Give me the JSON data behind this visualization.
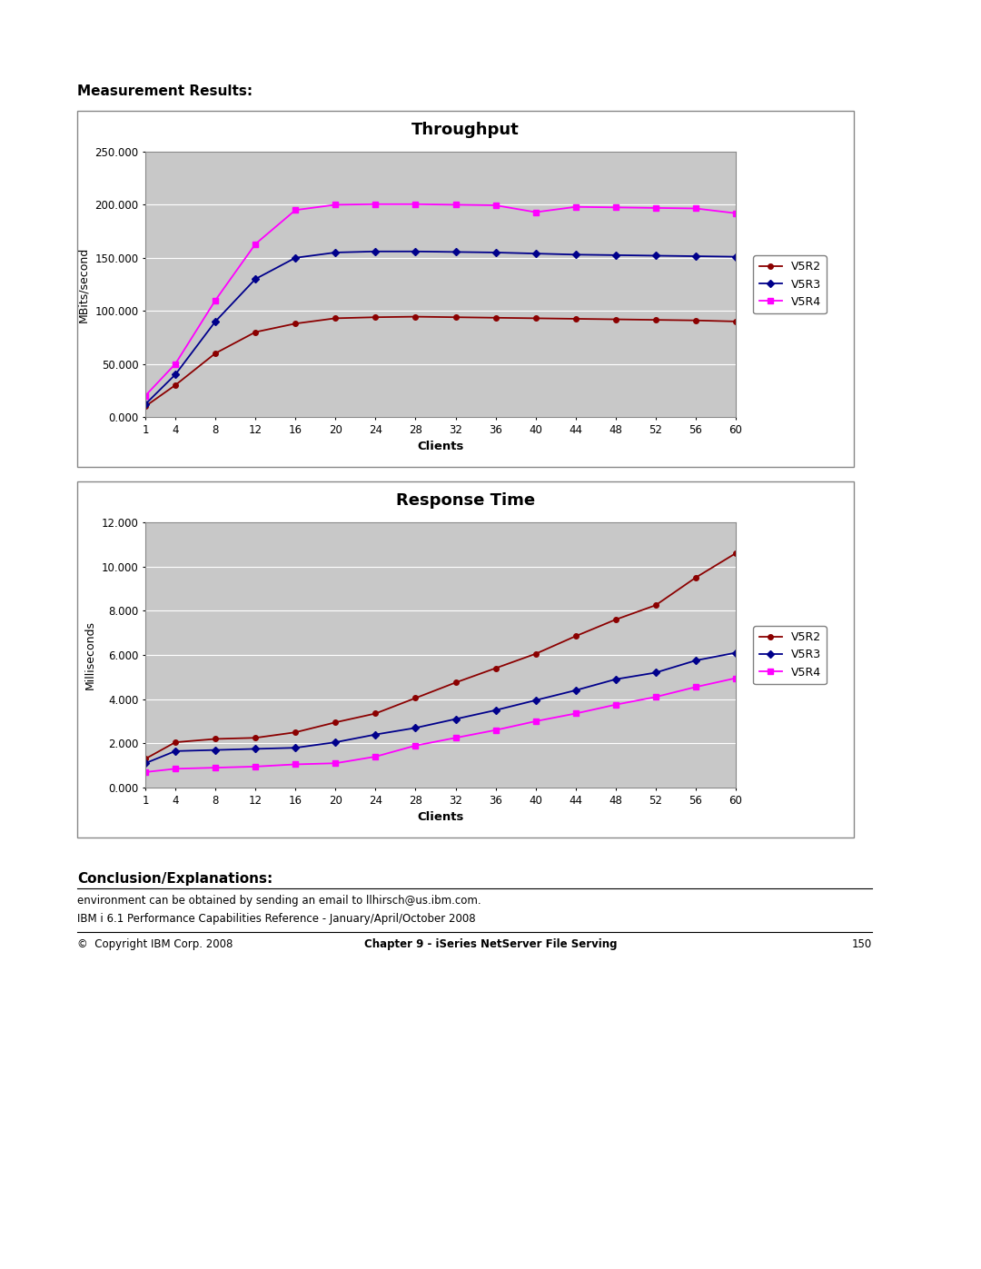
{
  "clients": [
    1,
    4,
    8,
    12,
    16,
    20,
    24,
    28,
    32,
    36,
    40,
    44,
    48,
    52,
    56,
    60
  ],
  "throughput": {
    "V5R2": [
      10.0,
      30.0,
      60.0,
      80.0,
      88.0,
      93.0,
      94.0,
      94.5,
      94.0,
      93.5,
      93.0,
      92.5,
      92.0,
      91.5,
      91.0,
      90.0
    ],
    "V5R3": [
      12.0,
      40.0,
      90.0,
      130.0,
      150.0,
      155.0,
      156.0,
      156.0,
      155.5,
      155.0,
      154.0,
      153.0,
      152.5,
      152.0,
      151.5,
      151.0
    ],
    "V5R4": [
      20.0,
      50.0,
      110.0,
      163.0,
      195.0,
      200.0,
      200.5,
      200.5,
      200.0,
      199.5,
      193.0,
      198.0,
      197.5,
      197.0,
      196.5,
      192.0
    ]
  },
  "response_time": {
    "V5R2": [
      1.3,
      2.05,
      2.2,
      2.25,
      2.5,
      2.95,
      3.35,
      4.05,
      4.75,
      5.4,
      6.05,
      6.85,
      7.6,
      8.25,
      9.5,
      10.6
    ],
    "V5R3": [
      1.1,
      1.65,
      1.7,
      1.75,
      1.8,
      2.05,
      2.4,
      2.7,
      3.1,
      3.5,
      3.95,
      4.4,
      4.9,
      5.2,
      5.75,
      6.1
    ],
    "V5R4": [
      0.7,
      0.85,
      0.9,
      0.95,
      1.05,
      1.1,
      1.4,
      1.9,
      2.25,
      2.6,
      3.0,
      3.35,
      3.75,
      4.1,
      4.55,
      4.95
    ]
  },
  "colors": {
    "V5R2": "#8B0000",
    "V5R3": "#00008B",
    "V5R4": "#FF00FF"
  },
  "throughput_title": "Throughput",
  "response_title": "Response Time",
  "throughput_ylabel": "MBits/second",
  "response_ylabel": "Milliseconds",
  "xlabel": "Clients",
  "throughput_ylim": [
    0,
    250
  ],
  "throughput_yticks": [
    0.0,
    50.0,
    100.0,
    150.0,
    200.0,
    250.0
  ],
  "throughput_ytick_labels": [
    "0.000",
    "50.000",
    "100.000",
    "150.000",
    "200.000",
    "250.000"
  ],
  "response_ylim": [
    0,
    12
  ],
  "response_yticks": [
    0.0,
    2.0,
    4.0,
    6.0,
    8.0,
    10.0,
    12.0
  ],
  "response_ytick_labels": [
    "0.000",
    "2.000",
    "4.000",
    "6.000",
    "8.000",
    "10.000",
    "12.000"
  ],
  "xticks": [
    1,
    4,
    8,
    12,
    16,
    20,
    24,
    28,
    32,
    36,
    40,
    44,
    48,
    52,
    56,
    60
  ],
  "measurement_results_text": "Measurement Results:",
  "conclusion_text": "Conclusion/Explanations:",
  "footer_text1": "environment can be obtained by sending an email to llhirsch@us.ibm.com.",
  "footer_text2": "IBM i 6.1 Performance Capabilities Reference - January/April/October 2008",
  "footer_copyright": "©  Copyright IBM Corp. 2008",
  "footer_chapter": "Chapter 9 - iSeries NetServer File Serving",
  "footer_page": "150",
  "background_color": "#C8C8C8",
  "box_bg": "#FFFFFF"
}
